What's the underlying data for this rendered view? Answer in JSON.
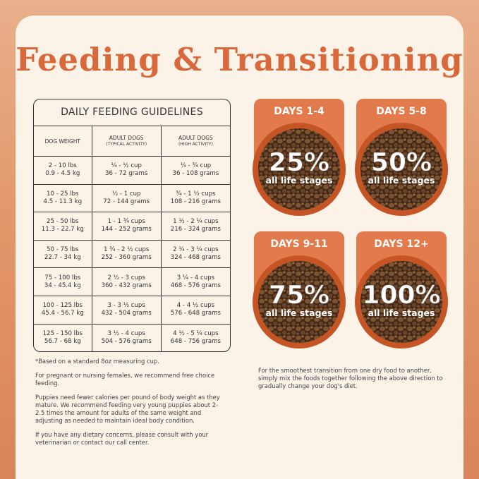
{
  "title": "Feeding & Transitioning",
  "table": {
    "title": "DAILY FEEDING GUIDELINES",
    "header": [
      [
        "DOG WEIGHT"
      ],
      [
        "ADULT DOGS",
        "(TYPICAL ACTIVITY)"
      ],
      [
        "ADULT DOGS",
        "(HIGH ACTIVITY)"
      ]
    ],
    "rows": [
      [
        [
          "2 - 10 lbs",
          "0.9 - 4.5 kg"
        ],
        [
          "¼ - ½ cup",
          "36 - 72 grams"
        ],
        [
          "¼ - ¾ cup",
          "36 - 108 grams"
        ]
      ],
      [
        [
          "10 - 25 lbs",
          "4.5 - 11.3 kg"
        ],
        [
          "½ - 1 cup",
          "72 - 144 grams"
        ],
        [
          "¾ - 1 ½ cups",
          "108 - 216 grams"
        ]
      ],
      [
        [
          "25 - 50 lbs",
          "11.3 - 22.7 kg"
        ],
        [
          "1 - 1 ¾ cups",
          "144 - 252 grams"
        ],
        [
          "1 ½ - 2 ¼ cups",
          "216 - 324 grams"
        ]
      ],
      [
        [
          "50 - 75 lbs",
          "22.7 - 34 kg"
        ],
        [
          "1 ¾ - 2 ½ cups",
          "252 - 360 grams"
        ],
        [
          "2 ¼ - 3 ¼ cups",
          "324 - 468 grams"
        ]
      ],
      [
        [
          "75 - 100 lbs",
          "34 - 45.4 kg"
        ],
        [
          "2 ½ - 3 cups",
          "360 - 432 grams"
        ],
        [
          "3 ¼ - 4 cups",
          "468 - 576 grams"
        ]
      ],
      [
        [
          "100 - 125 lbs",
          "45.4 - 56.7 kg"
        ],
        [
          "3 - 3 ½ cups",
          "432 - 504 grams"
        ],
        [
          "4 - 4 ½ cups",
          "576 - 648 grams"
        ]
      ],
      [
        [
          "125 - 150 lbs",
          "56.7 - 68 kg"
        ],
        [
          "3 ½ - 4 cups",
          "504 - 576 grams"
        ],
        [
          "4 ½ - 5 ¼ cups",
          "648 - 756 grams"
        ]
      ]
    ]
  },
  "notes": [
    "*Based on a standard 8oz measuring cup.",
    "For pregnant or nursing females, we recommend free choice feeding.",
    "Puppies need fewer calories per pound of body weight as they mature. We recommend feeding very young puppies about 2-2.5 times the amount for adults of the same weight and adjusting as needed to maintain ideal body condition.",
    "If you have any dietary concerns, please consult with your veterinarian or contact our call center."
  ],
  "transition": {
    "stages": [
      {
        "days": "DAYS 1-4",
        "percent": "25%",
        "label": "all life stages"
      },
      {
        "days": "DAYS 5-8",
        "percent": "50%",
        "label": "all life stages"
      },
      {
        "days": "DAYS 9-11",
        "percent": "75%",
        "label": "all life stages"
      },
      {
        "days": "DAYS 12+",
        "percent": "100%",
        "label": "all life stages"
      }
    ],
    "note": "For the smoothest transition from one dry food to another, simply mix the foods together following the above direction to gradually change your dog's diet."
  }
}
